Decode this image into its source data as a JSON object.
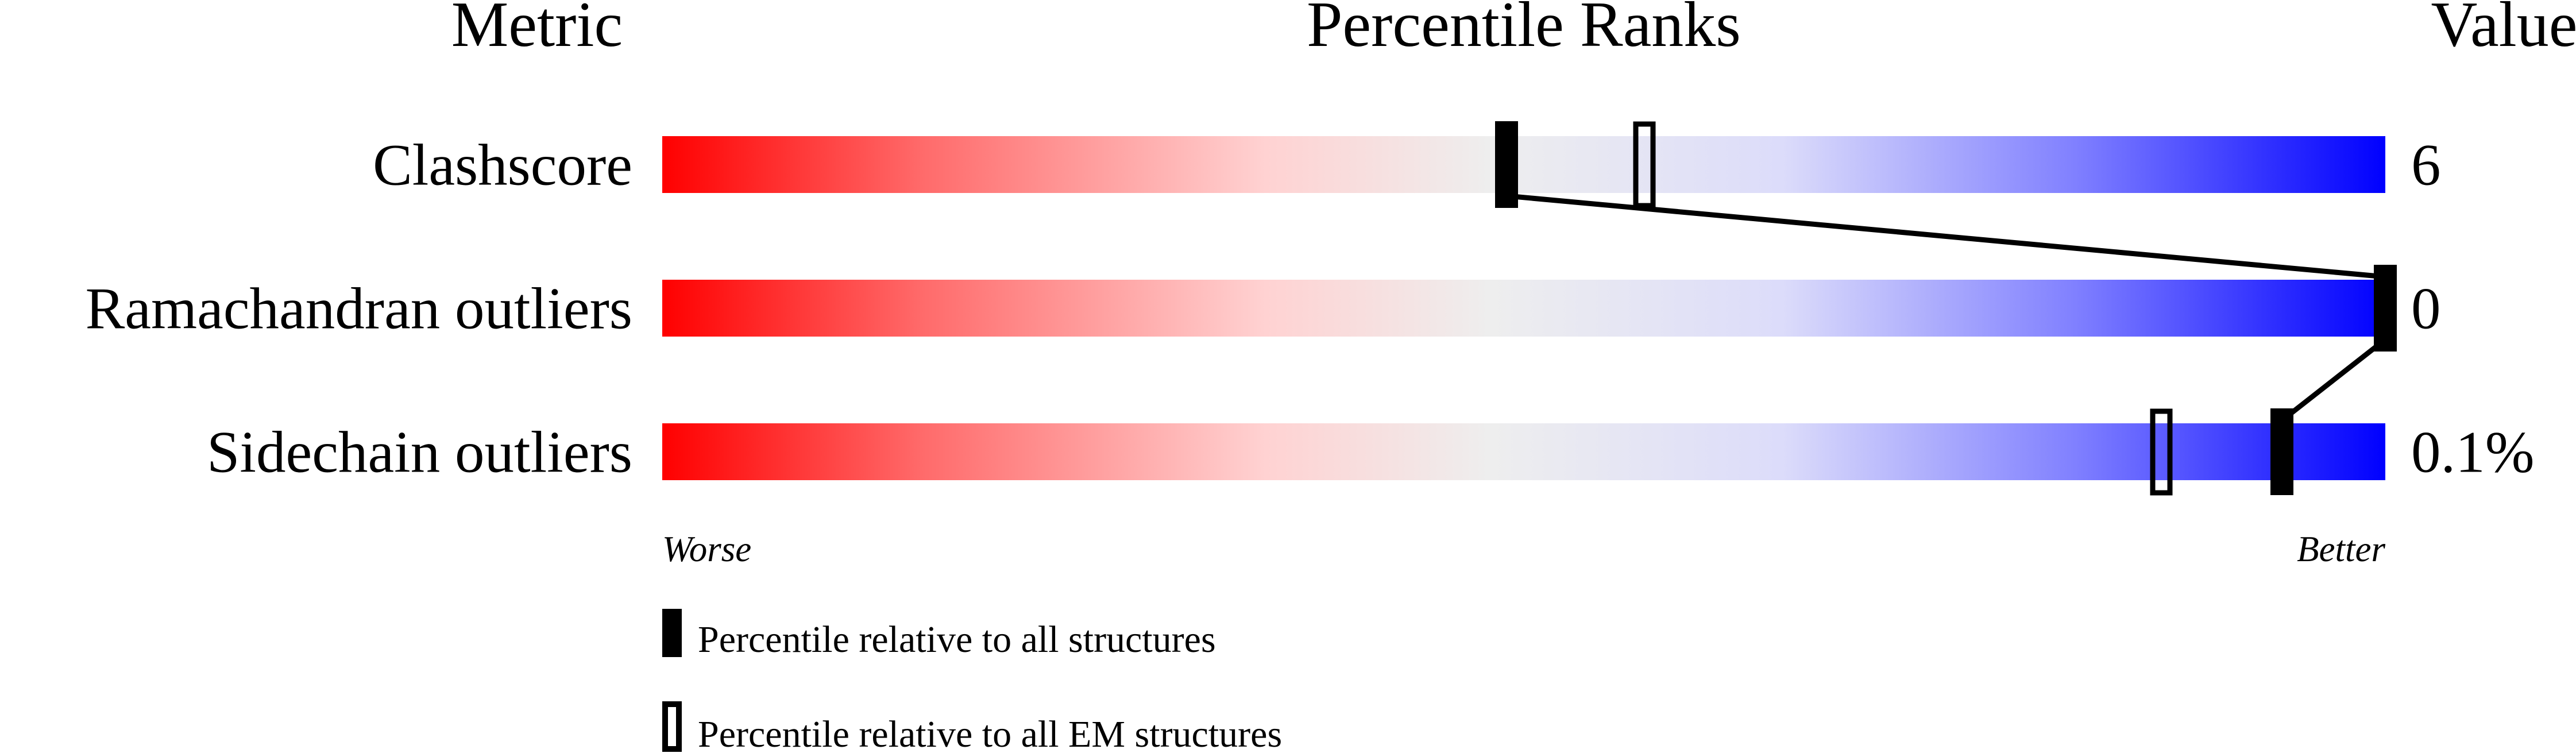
{
  "chart_data": {
    "type": "percentile-slider",
    "headers": {
      "metric": "Metric",
      "ranks": "Percentile Ranks",
      "value": "Value"
    },
    "xlim": [
      0,
      100
    ],
    "metrics": [
      {
        "label": "Clashscore",
        "value": "6",
        "percentile_all": 49,
        "percentile_em": 57
      },
      {
        "label": "Ramachandran outliers",
        "value": "0",
        "percentile_all": 100,
        "percentile_em": null
      },
      {
        "label": "Sidechain outliers",
        "value": "0.1%",
        "percentile_all": 94,
        "percentile_em": 87
      }
    ],
    "axis_labels": {
      "left": "Worse",
      "right": "Better"
    },
    "legend": [
      {
        "marker": "filled",
        "label": "Percentile relative to all structures"
      },
      {
        "marker": "open",
        "label": "Percentile relative to all EM structures"
      }
    ],
    "colors": {
      "worse": "#ff0000",
      "middle": "#eeeeee",
      "better": "#0000ff",
      "marker": "#000000"
    }
  }
}
